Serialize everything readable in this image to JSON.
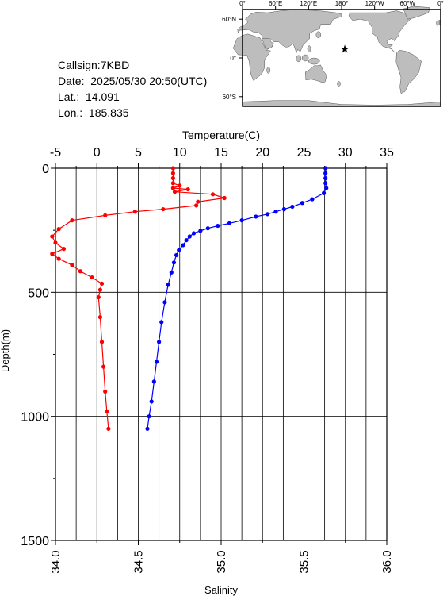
{
  "station": {
    "callsign": "Callsign:7KBD",
    "date": "Date:  2025/05/30 20:50(UTC)",
    "lat": "Lat.:  14.091",
    "lon": "Lon.:  185.835"
  },
  "map": {
    "lon_labels": [
      "0°",
      "60°E",
      "120°E",
      "180°",
      "120°W",
      "60°W",
      "0°"
    ],
    "lat_labels": [
      "60°N",
      "0°",
      "60°S"
    ],
    "marker": {
      "lat": 14.091,
      "lon": 185.835,
      "color": "#ff0000"
    },
    "land_color": "#bdbdbd",
    "ocean_color": "#ffffff"
  },
  "chart_data": {
    "type": "line",
    "ylabel": "Depth(m)",
    "ylim": [
      0,
      1500
    ],
    "y_ticks": [
      0,
      500,
      1000,
      1500
    ],
    "x_top": {
      "label": "Temperature(C)",
      "lim": [
        -5,
        35
      ],
      "ticks": [
        -5,
        0,
        5,
        10,
        15,
        20,
        25,
        30,
        35
      ]
    },
    "x_bottom": {
      "label": "Salinity",
      "lim": [
        34.0,
        36.0
      ],
      "ticks": [
        "34.0",
        "34.5",
        "35.0",
        "35.5",
        "36.0"
      ]
    },
    "grid": true,
    "series": [
      {
        "axis": "top",
        "color": "#0000ff",
        "points": [
          [
            27.6,
            0
          ],
          [
            27.6,
            20
          ],
          [
            27.6,
            40
          ],
          [
            27.6,
            60
          ],
          [
            27.7,
            80
          ],
          [
            27.4,
            100
          ],
          [
            26.0,
            125
          ],
          [
            24.8,
            140
          ],
          [
            23.6,
            155
          ],
          [
            22.6,
            165
          ],
          [
            21.6,
            175
          ],
          [
            20.6,
            185
          ],
          [
            19.2,
            195
          ],
          [
            17.5,
            210
          ],
          [
            16.0,
            222
          ],
          [
            14.6,
            232
          ],
          [
            13.4,
            242
          ],
          [
            12.5,
            252
          ],
          [
            11.7,
            262
          ],
          [
            11.2,
            275
          ],
          [
            10.8,
            290
          ],
          [
            10.4,
            310
          ],
          [
            9.9,
            330
          ],
          [
            9.6,
            350
          ],
          [
            9.3,
            380
          ],
          [
            9.0,
            420
          ],
          [
            8.6,
            470
          ],
          [
            8.2,
            540
          ],
          [
            7.8,
            620
          ],
          [
            7.5,
            700
          ],
          [
            7.2,
            780
          ],
          [
            6.9,
            860
          ],
          [
            6.6,
            940
          ],
          [
            6.3,
            1000
          ],
          [
            6.1,
            1050
          ]
        ]
      },
      {
        "axis": "bottom",
        "color": "#ff0000",
        "points": [
          [
            34.71,
            0
          ],
          [
            34.71,
            20
          ],
          [
            34.71,
            40
          ],
          [
            34.71,
            60
          ],
          [
            34.75,
            70
          ],
          [
            34.71,
            80
          ],
          [
            34.8,
            85
          ],
          [
            34.72,
            95
          ],
          [
            34.95,
            105
          ],
          [
            35.02,
            120
          ],
          [
            34.86,
            135
          ],
          [
            34.85,
            150
          ],
          [
            34.65,
            165
          ],
          [
            34.48,
            175
          ],
          [
            34.3,
            190
          ],
          [
            34.1,
            210
          ],
          [
            34.02,
            245
          ],
          [
            33.98,
            275
          ],
          [
            34.0,
            300
          ],
          [
            34.05,
            325
          ],
          [
            33.98,
            345
          ],
          [
            34.02,
            365
          ],
          [
            34.1,
            390
          ],
          [
            34.15,
            415
          ],
          [
            34.22,
            440
          ],
          [
            34.28,
            465
          ],
          [
            34.27,
            490
          ],
          [
            34.26,
            520
          ],
          [
            34.27,
            600
          ],
          [
            34.28,
            700
          ],
          [
            34.29,
            800
          ],
          [
            34.3,
            900
          ],
          [
            34.31,
            980
          ],
          [
            34.32,
            1050
          ]
        ]
      }
    ]
  }
}
